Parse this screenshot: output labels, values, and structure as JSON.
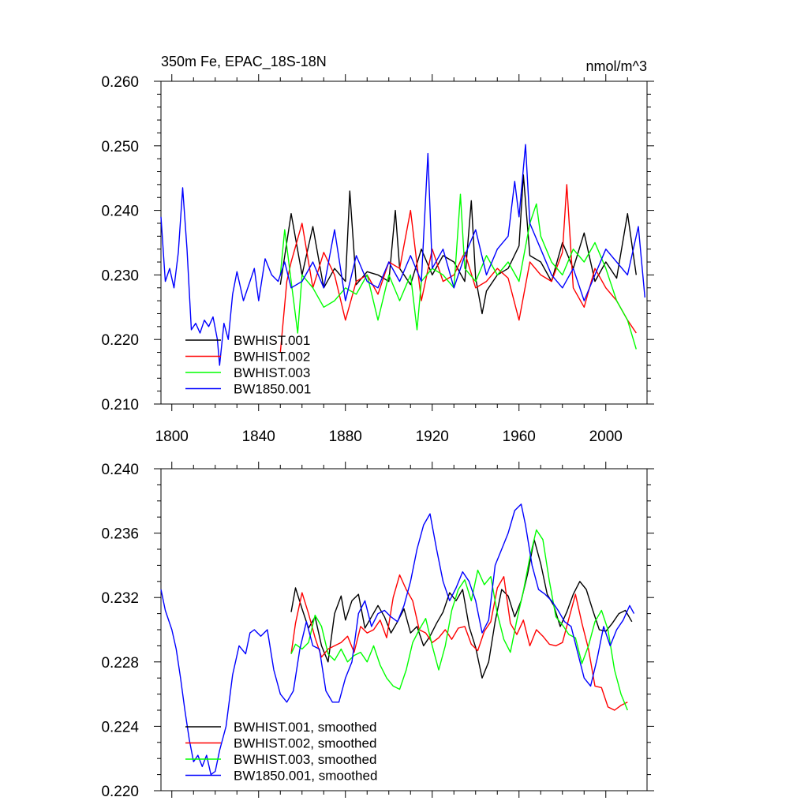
{
  "chart_data": [
    {
      "type": "line",
      "title": "350m Fe, EPAC_18S-18N",
      "units": "nmol/m^3",
      "xlim": [
        1795,
        2019
      ],
      "ylim": [
        0.21,
        0.26
      ],
      "x_ticks": [
        1800,
        1840,
        1880,
        1920,
        1960,
        2000
      ],
      "x_tick_labels": [
        "1800",
        "1840",
        "1880",
        "1920",
        "1960",
        "2000"
      ],
      "y_ticks": [
        0.21,
        0.22,
        0.23,
        0.24,
        0.25,
        0.26
      ],
      "y_tick_labels": [
        "0.210",
        "0.220",
        "0.230",
        "0.240",
        "0.250",
        "0.260"
      ],
      "legend_position": "bottom-left",
      "series": [
        {
          "name": "BWHIST.001",
          "color": "#000000",
          "x": [
            1850,
            1855,
            1860,
            1865,
            1870,
            1875,
            1880,
            1882,
            1885,
            1890,
            1895,
            1900,
            1903,
            1905,
            1910,
            1915,
            1920,
            1925,
            1930,
            1935,
            1938,
            1940,
            1943,
            1945,
            1950,
            1955,
            1960,
            1962,
            1965,
            1970,
            1975,
            1980,
            1985,
            1990,
            1995,
            2000,
            2005,
            2010,
            2014
          ],
          "y": [
            0.2285,
            0.2395,
            0.23,
            0.2375,
            0.228,
            0.231,
            0.229,
            0.243,
            0.2285,
            0.2305,
            0.23,
            0.229,
            0.24,
            0.231,
            0.2285,
            0.234,
            0.23,
            0.233,
            0.232,
            0.229,
            0.2415,
            0.2295,
            0.224,
            0.2275,
            0.23,
            0.231,
            0.2345,
            0.2455,
            0.233,
            0.232,
            0.229,
            0.235,
            0.231,
            0.2365,
            0.229,
            0.232,
            0.2295,
            0.2395,
            0.23
          ]
        },
        {
          "name": "BWHIST.002",
          "color": "#ff0000",
          "x": [
            1850,
            1853,
            1855,
            1860,
            1865,
            1870,
            1875,
            1880,
            1885,
            1890,
            1895,
            1900,
            1905,
            1910,
            1915,
            1920,
            1925,
            1930,
            1935,
            1940,
            1945,
            1950,
            1955,
            1960,
            1965,
            1970,
            1975,
            1980,
            1982,
            1985,
            1990,
            1995,
            2000,
            2005,
            2010,
            2014
          ],
          "y": [
            0.218,
            0.229,
            0.232,
            0.238,
            0.228,
            0.2335,
            0.23,
            0.223,
            0.229,
            0.23,
            0.227,
            0.232,
            0.231,
            0.24,
            0.226,
            0.234,
            0.229,
            0.23,
            0.2335,
            0.228,
            0.229,
            0.231,
            0.2295,
            0.223,
            0.232,
            0.23,
            0.229,
            0.2335,
            0.244,
            0.228,
            0.225,
            0.231,
            0.228,
            0.226,
            0.223,
            0.221
          ]
        },
        {
          "name": "BWHIST.003",
          "color": "#00ff00",
          "x": [
            1850,
            1852,
            1855,
            1858,
            1860,
            1865,
            1870,
            1875,
            1880,
            1885,
            1890,
            1895,
            1900,
            1905,
            1910,
            1913,
            1915,
            1920,
            1925,
            1930,
            1933,
            1935,
            1940,
            1945,
            1950,
            1955,
            1960,
            1965,
            1968,
            1970,
            1975,
            1980,
            1985,
            1990,
            1995,
            2000,
            2005,
            2010,
            2014
          ],
          "y": [
            0.23,
            0.237,
            0.229,
            0.221,
            0.23,
            0.228,
            0.225,
            0.226,
            0.228,
            0.227,
            0.23,
            0.223,
            0.23,
            0.226,
            0.23,
            0.2215,
            0.229,
            0.231,
            0.23,
            0.228,
            0.2425,
            0.231,
            0.229,
            0.233,
            0.23,
            0.232,
            0.229,
            0.238,
            0.241,
            0.236,
            0.232,
            0.23,
            0.234,
            0.232,
            0.235,
            0.231,
            0.226,
            0.223,
            0.2185
          ]
        },
        {
          "name": "BW1850.001",
          "color": "#0000ff",
          "x": [
            1795,
            1797,
            1799,
            1801,
            1803,
            1805,
            1807,
            1809,
            1811,
            1813,
            1815,
            1817,
            1819,
            1821,
            1822,
            1824,
            1826,
            1828,
            1830,
            1833,
            1836,
            1838,
            1840,
            1843,
            1846,
            1849,
            1852,
            1855,
            1860,
            1865,
            1870,
            1875,
            1880,
            1885,
            1890,
            1895,
            1900,
            1905,
            1910,
            1915,
            1918,
            1920,
            1925,
            1930,
            1935,
            1940,
            1945,
            1950,
            1955,
            1958,
            1960,
            1963,
            1965,
            1970,
            1975,
            1980,
            1985,
            1990,
            1995,
            2000,
            2005,
            2010,
            2015,
            2018
          ],
          "y": [
            0.239,
            0.229,
            0.231,
            0.228,
            0.2335,
            0.2435,
            0.234,
            0.2215,
            0.2225,
            0.221,
            0.223,
            0.222,
            0.2235,
            0.22,
            0.216,
            0.2225,
            0.22,
            0.227,
            0.2305,
            0.226,
            0.229,
            0.231,
            0.226,
            0.2325,
            0.23,
            0.229,
            0.232,
            0.228,
            0.229,
            0.232,
            0.228,
            0.237,
            0.226,
            0.233,
            0.229,
            0.228,
            0.232,
            0.229,
            0.233,
            0.229,
            0.2488,
            0.231,
            0.234,
            0.228,
            0.233,
            0.237,
            0.23,
            0.234,
            0.236,
            0.2445,
            0.239,
            0.2502,
            0.238,
            0.234,
            0.23,
            0.228,
            0.231,
            0.226,
            0.23,
            0.234,
            0.232,
            0.23,
            0.2375,
            0.2265
          ]
        }
      ]
    },
    {
      "type": "line",
      "xlim": [
        1795,
        2019
      ],
      "ylim": [
        0.22,
        0.24
      ],
      "x_ticks": [
        1800,
        1840,
        1880,
        1920,
        1960,
        2000
      ],
      "y_ticks": [
        0.22,
        0.224,
        0.228,
        0.232,
        0.236,
        0.24
      ],
      "y_tick_labels": [
        "0.220",
        "0.224",
        "0.228",
        "0.232",
        "0.236",
        "0.240"
      ],
      "legend_position": "bottom-left",
      "series": [
        {
          "name": "BWHIST.001, smoothed",
          "color": "#000000",
          "x": [
            1855,
            1857,
            1860,
            1863,
            1866,
            1869,
            1872,
            1875,
            1878,
            1880,
            1883,
            1886,
            1889,
            1892,
            1895,
            1898,
            1901,
            1904,
            1907,
            1910,
            1913,
            1916,
            1919,
            1922,
            1925,
            1928,
            1931,
            1934,
            1937,
            1940,
            1943,
            1946,
            1949,
            1952,
            1955,
            1958,
            1961,
            1964,
            1967,
            1970,
            1973,
            1976,
            1979,
            1982,
            1985,
            1988,
            1991,
            1994,
            1997,
            2000,
            2003,
            2006,
            2009,
            2012
          ],
          "y": [
            0.2311,
            0.2326,
            0.2313,
            0.2301,
            0.2308,
            0.229,
            0.228,
            0.231,
            0.2321,
            0.2306,
            0.2318,
            0.2322,
            0.2301,
            0.2308,
            0.2315,
            0.2308,
            0.2298,
            0.2305,
            0.2313,
            0.2298,
            0.2302,
            0.229,
            0.2296,
            0.2304,
            0.2311,
            0.2323,
            0.2318,
            0.2325,
            0.2302,
            0.2289,
            0.227,
            0.228,
            0.2305,
            0.2325,
            0.2321,
            0.2308,
            0.2318,
            0.2335,
            0.2356,
            0.2341,
            0.2322,
            0.2315,
            0.2302,
            0.2311,
            0.2322,
            0.233,
            0.2325,
            0.2312,
            0.23,
            0.2299,
            0.2304,
            0.231,
            0.2312,
            0.2305
          ]
        },
        {
          "name": "BWHIST.002, smoothed",
          "color": "#ff0000",
          "x": [
            1855,
            1857,
            1860,
            1863,
            1866,
            1869,
            1872,
            1875,
            1878,
            1881,
            1884,
            1887,
            1890,
            1893,
            1896,
            1899,
            1902,
            1905,
            1908,
            1911,
            1914,
            1917,
            1920,
            1923,
            1926,
            1929,
            1932,
            1935,
            1938,
            1941,
            1944,
            1947,
            1950,
            1953,
            1956,
            1959,
            1962,
            1965,
            1968,
            1971,
            1974,
            1977,
            1980,
            1983,
            1986,
            1989,
            1992,
            1995,
            1998,
            2001,
            2004,
            2007,
            2010
          ],
          "y": [
            0.2285,
            0.2304,
            0.2323,
            0.231,
            0.2295,
            0.2283,
            0.2288,
            0.229,
            0.2292,
            0.2296,
            0.2286,
            0.2302,
            0.2298,
            0.23,
            0.2306,
            0.2295,
            0.232,
            0.2334,
            0.2325,
            0.2318,
            0.23,
            0.2298,
            0.2292,
            0.2295,
            0.23,
            0.2294,
            0.2301,
            0.2302,
            0.2291,
            0.2287,
            0.2299,
            0.2305,
            0.2326,
            0.2333,
            0.2304,
            0.2297,
            0.2306,
            0.229,
            0.23,
            0.2296,
            0.2291,
            0.229,
            0.2292,
            0.2307,
            0.2322,
            0.2304,
            0.2288,
            0.2265,
            0.2264,
            0.2252,
            0.225,
            0.2253,
            0.2255
          ]
        },
        {
          "name": "BWHIST.003, smoothed",
          "color": "#00ff00",
          "x": [
            1855,
            1857,
            1860,
            1863,
            1866,
            1869,
            1872,
            1875,
            1878,
            1881,
            1884,
            1887,
            1890,
            1893,
            1896,
            1899,
            1902,
            1905,
            1908,
            1911,
            1914,
            1917,
            1920,
            1923,
            1926,
            1929,
            1932,
            1935,
            1938,
            1941,
            1944,
            1947,
            1950,
            1953,
            1956,
            1959,
            1962,
            1965,
            1968,
            1971,
            1974,
            1977,
            1980,
            1983,
            1986,
            1989,
            1992,
            1995,
            1998,
            2001,
            2004,
            2007,
            2010
          ],
          "y": [
            0.2285,
            0.2291,
            0.2288,
            0.2292,
            0.2309,
            0.2302,
            0.2285,
            0.2281,
            0.2288,
            0.228,
            0.2284,
            0.2286,
            0.228,
            0.229,
            0.2278,
            0.227,
            0.2265,
            0.2263,
            0.2275,
            0.2292,
            0.23,
            0.2307,
            0.229,
            0.2275,
            0.229,
            0.2312,
            0.2325,
            0.2331,
            0.2318,
            0.2337,
            0.2328,
            0.2333,
            0.231,
            0.2294,
            0.2286,
            0.2306,
            0.2324,
            0.2345,
            0.2362,
            0.2356,
            0.233,
            0.2308,
            0.2303,
            0.2297,
            0.2295,
            0.2279,
            0.229,
            0.2305,
            0.2312,
            0.23,
            0.2275,
            0.226,
            0.225
          ]
        },
        {
          "name": "BW1850.001, smoothed",
          "color": "#0000ff",
          "x": [
            1795,
            1797,
            1800,
            1802,
            1804,
            1806,
            1808,
            1810,
            1812,
            1814,
            1816,
            1818,
            1820,
            1822,
            1825,
            1828,
            1831,
            1834,
            1836,
            1838,
            1841,
            1844,
            1847,
            1850,
            1853,
            1856,
            1859,
            1862,
            1865,
            1868,
            1871,
            1874,
            1877,
            1880,
            1883,
            1886,
            1889,
            1892,
            1895,
            1898,
            1901,
            1904,
            1907,
            1910,
            1913,
            1916,
            1919,
            1922,
            1925,
            1928,
            1931,
            1934,
            1937,
            1940,
            1943,
            1946,
            1949,
            1952,
            1955,
            1958,
            1961,
            1963,
            1966,
            1969,
            1972,
            1975,
            1978,
            1981,
            1984,
            1987,
            1990,
            1993,
            1996,
            1999,
            2002,
            2005,
            2008,
            2011,
            2013
          ],
          "y": [
            0.2325,
            0.2312,
            0.23,
            0.2288,
            0.227,
            0.225,
            0.2232,
            0.2218,
            0.2222,
            0.2215,
            0.2222,
            0.221,
            0.2212,
            0.2225,
            0.224,
            0.2272,
            0.229,
            0.2285,
            0.2298,
            0.23,
            0.2296,
            0.23,
            0.2275,
            0.226,
            0.2255,
            0.2262,
            0.2288,
            0.2305,
            0.229,
            0.2288,
            0.2262,
            0.2255,
            0.2255,
            0.227,
            0.228,
            0.231,
            0.2318,
            0.2302,
            0.231,
            0.2312,
            0.2308,
            0.2305,
            0.2315,
            0.233,
            0.235,
            0.2365,
            0.2372,
            0.235,
            0.233,
            0.2318,
            0.2326,
            0.2336,
            0.233,
            0.2318,
            0.2298,
            0.2306,
            0.234,
            0.235,
            0.236,
            0.2374,
            0.2378,
            0.2365,
            0.234,
            0.2325,
            0.2322,
            0.2318,
            0.2312,
            0.2305,
            0.2302,
            0.2286,
            0.227,
            0.2265,
            0.2282,
            0.2302,
            0.229,
            0.23,
            0.2306,
            0.2315,
            0.231
          ]
        }
      ]
    }
  ]
}
